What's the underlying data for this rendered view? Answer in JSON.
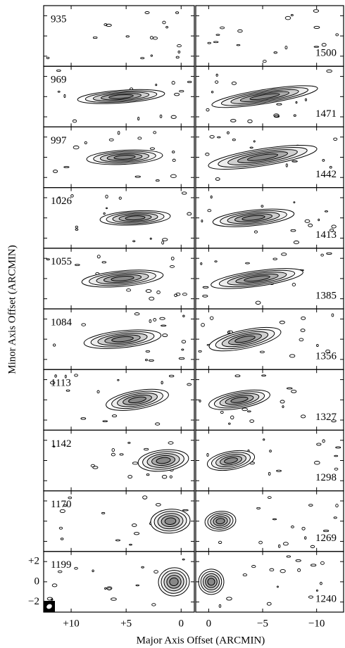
{
  "chart_data": {
    "type": "contour",
    "xlabel": "Major Axis Offset (ARCMIN)",
    "ylabel": "Minor Axis Offset (ARCMIN)",
    "ylim": [
      -3,
      3
    ],
    "yticks": [
      {
        "value": 2,
        "label": "+2"
      },
      0,
      {
        "value": -2,
        "label": "−2"
      }
    ],
    "columns": [
      {
        "xlim": [
          12.5,
          -1.2
        ],
        "xticks": [
          {
            "value": 10,
            "label": "+10"
          },
          {
            "value": 5,
            "label": "+5"
          },
          0
        ],
        "panels": [
          935,
          969,
          997,
          1026,
          1055,
          1084,
          1113,
          1142,
          1170,
          1199
        ]
      },
      {
        "xlim": [
          1.2,
          -12.5
        ],
        "xticks": [
          0,
          {
            "value": -5,
            "label": "−5"
          },
          {
            "value": -10,
            "label": "−10"
          }
        ],
        "panels": [
          1500,
          1471,
          1442,
          1413,
          1385,
          1356,
          1327,
          1298,
          1269,
          1240
        ]
      }
    ]
  }
}
